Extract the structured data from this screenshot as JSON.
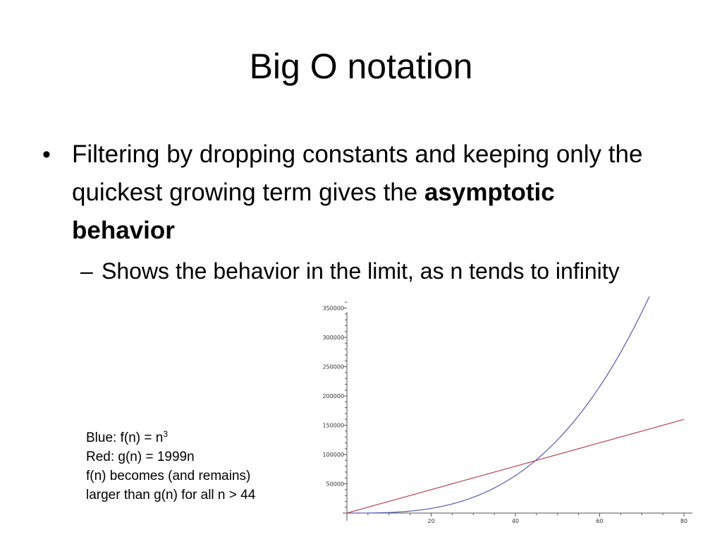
{
  "slide": {
    "title": "Big O notation",
    "bullet": {
      "text_before_bold": "Filtering by dropping constants and keeping only the quickest growing term gives the ",
      "bold_text": "asymptotic behavior"
    },
    "sub_bullet": {
      "marker": "–",
      "text": "Shows the behavior in the limit, as n tends to infinity"
    },
    "caption": {
      "line1_prefix": "Blue:  f(n) = n",
      "line1_sup": "3",
      "line2": "Red:   g(n) = 1999n",
      "line3": "f(n) becomes (and remains)",
      "line4": "larger than g(n) for all n > 44"
    }
  },
  "chart_data": {
    "type": "line",
    "title": "",
    "xlabel": "",
    "ylabel": "",
    "xlim": [
      0,
      80
    ],
    "ylim": [
      0,
      370000
    ],
    "grid": false,
    "x_ticks": [
      "20",
      "40",
      "60",
      "80"
    ],
    "y_ticks": [
      "50000",
      "100000",
      "150000",
      "200000",
      "250000",
      "300000",
      "350000"
    ],
    "x_tick_values": [
      20,
      40,
      60,
      80
    ],
    "y_tick_values": [
      50000,
      100000,
      150000,
      200000,
      250000,
      300000,
      350000
    ],
    "series": [
      {
        "color": "#5a5ab4",
        "x": [
          0,
          10,
          20,
          30,
          40,
          44,
          50,
          60,
          70,
          72
        ],
        "y": [
          0,
          1000,
          8000,
          27000,
          64000,
          85184,
          125000,
          216000,
          343000,
          373248
        ]
      },
      {
        "color": "#b44650",
        "x": [
          0,
          20,
          40,
          44,
          60,
          80
        ],
        "y": [
          0,
          39980,
          79960,
          87956,
          119940,
          159920
        ]
      }
    ]
  }
}
